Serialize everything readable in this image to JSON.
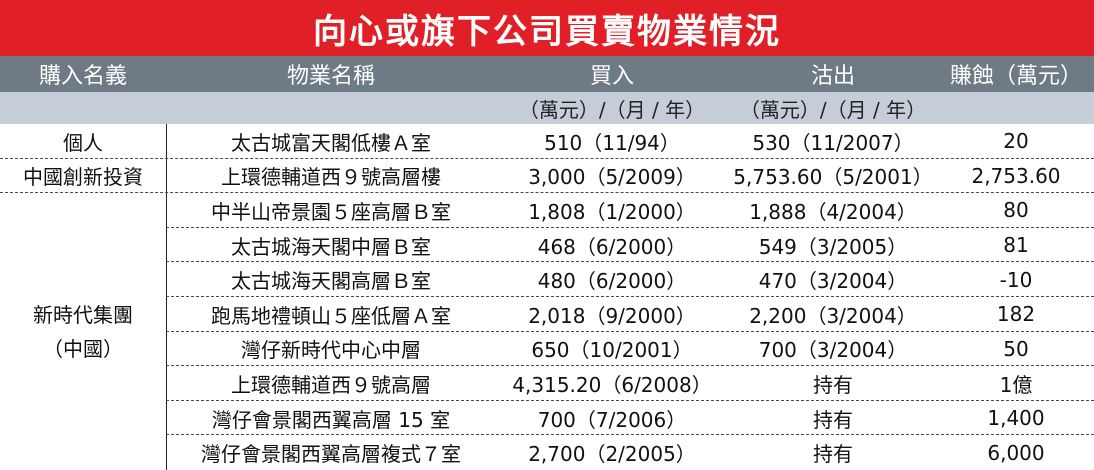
{
  "title": "向心或旗下公司買賣物業情況",
  "headers": {
    "buyer": "購入名義",
    "property": "物業名稱",
    "bought": "買入",
    "sold": "沽出",
    "profit": "賺蝕（萬元）"
  },
  "subheaders": {
    "bought_unit": "（萬元）/（月 / 年）",
    "sold_unit": "（萬元）/（月 / 年）"
  },
  "rows": [
    {
      "buyer": "個人",
      "property": "太古城富天閣低樓Ａ室",
      "bought": "510（11/94）",
      "sold": "530（11/2007）",
      "profit": "20"
    },
    {
      "buyer": "中國創新投資",
      "property": "上環德輔道西９號高層樓",
      "bought": "3,000（5/2009）",
      "sold": "5,753.60（5/2001）",
      "profit": "2,753.60"
    },
    {
      "property": "中半山帝景園５座高層Ｂ室",
      "bought": "1,808（1/2000）",
      "sold": "1,888（4/2004）",
      "profit": "80"
    },
    {
      "property": "太古城海天閣中層Ｂ室",
      "bought": "468（6/2000）",
      "sold": "549（3/2005）",
      "profit": "81"
    },
    {
      "property": "太古城海天閣高層Ｂ室",
      "bought": "480（6/2000）",
      "sold": "470（3/2004）",
      "profit": "-10"
    },
    {
      "property": "跑馬地禮頓山５座低層Ａ室",
      "bought": "2,018（9/2000）",
      "sold": "2,200（3/2004）",
      "profit": "182"
    },
    {
      "property": "灣仔新時代中心中層",
      "bought": "650（10/2001）",
      "sold": "700（3/2004）",
      "profit": "50"
    },
    {
      "property": "上環德輔道西９號高層",
      "bought": "4,315.20（6/2008）",
      "sold": "持有",
      "profit": "1億"
    },
    {
      "property": "灣仔會景閣西翼高層 15 室",
      "bought": "700（7/2006）",
      "sold": "持有",
      "profit": "1,400"
    },
    {
      "property": "灣仔會景閣西翼高層複式７室",
      "bought": "2,700（2/2005）",
      "sold": "持有",
      "profit": "6,000"
    }
  ],
  "group": {
    "line1": "新時代集團",
    "line2": "（中國）"
  },
  "colors": {
    "title_bg": "#e01f26",
    "header_bg": "#6e7a84",
    "subheader_bg": "#c5ced8"
  }
}
